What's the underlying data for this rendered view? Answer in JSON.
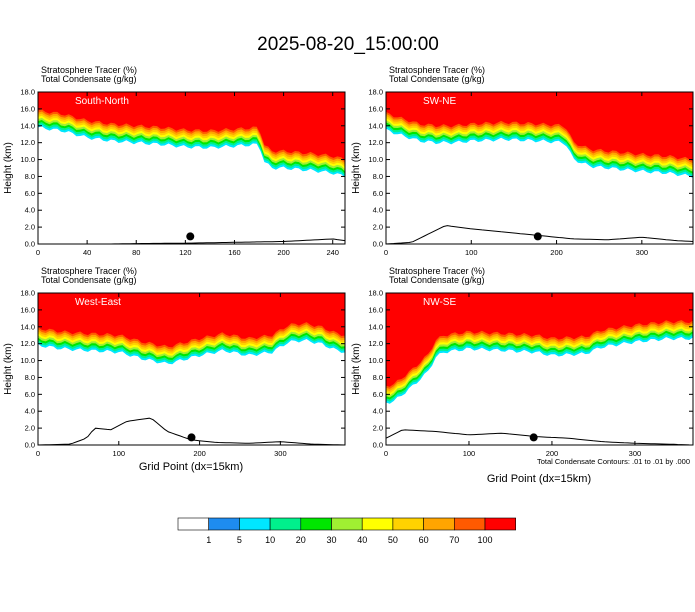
{
  "title": "2025-08-20_15:00:00",
  "panel_title_line1": "Stratosphere Tracer   (%)",
  "panel_title_line2": "Total Condensate   (g/kg)",
  "ylabel": "Height (km)",
  "xlabel": "Grid Point (dx=15km)",
  "contour_note": "Total Condensate Contours: .01 to .01 by .000",
  "colorbar": {
    "labels": [
      "1",
      "5",
      "10",
      "20",
      "30",
      "40",
      "50",
      "60",
      "70",
      "100"
    ],
    "colors": [
      "#ffffff",
      "#1e8cf0",
      "#00e6ff",
      "#00f08c",
      "#00e600",
      "#a0f032",
      "#ffff00",
      "#ffd200",
      "#ffa500",
      "#ff5a00",
      "#ff0000"
    ]
  },
  "chart_data": [
    {
      "type": "heatmap",
      "name": "South-North",
      "xlim": [
        0,
        250
      ],
      "ylim": [
        0,
        18
      ],
      "xticks": [
        "0",
        "40",
        "80",
        "120",
        "160",
        "200",
        "240"
      ],
      "yticks": [
        "0.0",
        "2.0",
        "4.0",
        "6.0",
        "8.0",
        "10.0",
        "12.0",
        "14.0",
        "16.0",
        "18.0"
      ],
      "tropopause_height_km": {
        "x": [
          0,
          20,
          40,
          60,
          80,
          100,
          120,
          140,
          160,
          180,
          184,
          190,
          200,
          215,
          230,
          240,
          250
        ],
        "y": [
          15.8,
          15.4,
          14.6,
          14.2,
          14.0,
          13.8,
          13.5,
          13.4,
          13.6,
          13.8,
          11.8,
          11.0,
          11.0,
          10.8,
          10.6,
          10.4,
          10.0
        ]
      },
      "terrain_height_km": {
        "x": [
          0,
          60,
          80,
          120,
          160,
          200,
          240,
          250
        ],
        "y": [
          0.0,
          0.0,
          0.05,
          0.1,
          0.2,
          0.3,
          0.6,
          0.4
        ]
      },
      "marker": {
        "x": 124,
        "y": 0.9
      }
    },
    {
      "type": "heatmap",
      "name": "SW-NE",
      "xlim": [
        0,
        360
      ],
      "ylim": [
        0,
        18
      ],
      "xticks": [
        "0",
        "100",
        "200",
        "300"
      ],
      "yticks": [
        "0.0",
        "2.0",
        "4.0",
        "6.0",
        "8.0",
        "10.0",
        "12.0",
        "14.0",
        "16.0",
        "18.0"
      ],
      "tropopause_height_km": {
        "x": [
          0,
          20,
          40,
          60,
          80,
          100,
          140,
          180,
          210,
          220,
          240,
          260,
          300,
          330,
          360
        ],
        "y": [
          15.5,
          14.8,
          14.2,
          14.0,
          14.0,
          14.2,
          14.4,
          14.2,
          14.0,
          12.0,
          11.2,
          11.0,
          10.6,
          10.4,
          10.0
        ]
      },
      "terrain_height_km": {
        "x": [
          0,
          30,
          50,
          70,
          100,
          140,
          180,
          220,
          260,
          300,
          340,
          360
        ],
        "y": [
          0.0,
          0.2,
          1.2,
          2.2,
          1.8,
          1.4,
          1.0,
          0.6,
          0.5,
          0.8,
          0.4,
          0.3
        ]
      },
      "marker": {
        "x": 178,
        "y": 0.9
      }
    },
    {
      "type": "heatmap",
      "name": "West-East",
      "xlim": [
        0,
        380
      ],
      "ylim": [
        0,
        18
      ],
      "xticks": [
        "0",
        "100",
        "200",
        "300"
      ],
      "yticks": [
        "0.0",
        "2.0",
        "4.0",
        "6.0",
        "8.0",
        "10.0",
        "12.0",
        "14.0",
        "16.0",
        "18.0"
      ],
      "tropopause_height_km": {
        "x": [
          0,
          30,
          60,
          100,
          130,
          160,
          200,
          230,
          260,
          290,
          310,
          330,
          350,
          370,
          380
        ],
        "y": [
          13.8,
          13.4,
          13.2,
          13.0,
          12.2,
          11.6,
          12.6,
          13.2,
          12.6,
          13.0,
          14.2,
          14.4,
          14.0,
          13.2,
          13.0
        ]
      },
      "terrain_height_km": {
        "x": [
          0,
          40,
          60,
          70,
          90,
          110,
          140,
          160,
          190,
          220,
          260,
          300,
          340,
          380
        ],
        "y": [
          0.0,
          0.1,
          0.8,
          2.0,
          1.8,
          2.8,
          3.2,
          1.6,
          0.6,
          0.3,
          0.2,
          0.4,
          0.1,
          0.0
        ]
      },
      "marker": {
        "x": 190,
        "y": 0.9
      }
    },
    {
      "type": "heatmap",
      "name": "NW-SE",
      "xlim": [
        0,
        370
      ],
      "ylim": [
        0,
        18
      ],
      "xticks": [
        "0",
        "100",
        "200",
        "300"
      ],
      "yticks": [
        "0.0",
        "2.0",
        "4.0",
        "6.0",
        "8.0",
        "10.0",
        "12.0",
        "14.0",
        "16.0",
        "18.0"
      ],
      "tropopause_height_km": {
        "x": [
          0,
          10,
          30,
          50,
          60,
          70,
          100,
          140,
          180,
          200,
          240,
          260,
          300,
          340,
          370
        ],
        "y": [
          7.0,
          7.2,
          8.8,
          10.6,
          12.4,
          13.0,
          13.4,
          13.2,
          13.0,
          12.6,
          12.8,
          13.6,
          14.2,
          14.6,
          14.6
        ]
      },
      "terrain_height_km": {
        "x": [
          0,
          20,
          60,
          100,
          140,
          180,
          220,
          260,
          300,
          340,
          370
        ],
        "y": [
          0.8,
          1.8,
          1.6,
          1.2,
          1.4,
          1.0,
          0.8,
          0.4,
          0.2,
          0.1,
          0.0
        ]
      },
      "marker": {
        "x": 178,
        "y": 0.9
      }
    }
  ]
}
